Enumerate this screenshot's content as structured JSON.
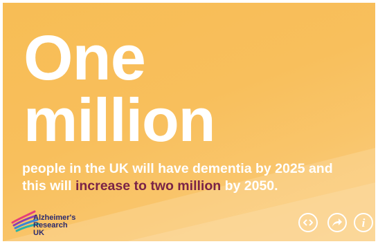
{
  "headline": {
    "line1": "One",
    "line2": "million"
  },
  "body": {
    "line1": "people in the UK will have dementia by 2025 and",
    "line2_prefix": "this will ",
    "line2_highlight": "increase to two million",
    "line2_suffix": " by 2050."
  },
  "logo": {
    "line1": "Alzheimer's",
    "line2": "Research",
    "line3": "UK"
  },
  "controls": {
    "embed_icon": "embed-code-icon",
    "share_icon": "share-arrow-icon",
    "info_glyph": "i"
  },
  "colors": {
    "background": "#f8bf5c",
    "text": "#ffffff",
    "highlight": "#7a2347",
    "logo_text": "#2b2a6e"
  }
}
